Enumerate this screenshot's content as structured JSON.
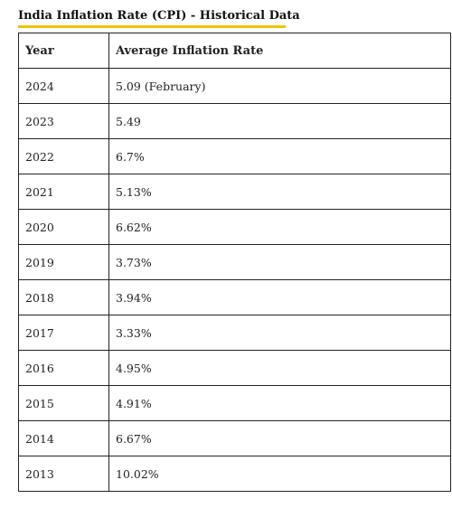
{
  "heading": "India Inflation Rate (CPI) - Historical Data",
  "colors": {
    "underline": "#f2c200",
    "border": "#222222",
    "text": "#222222"
  },
  "table": {
    "headers": [
      "Year",
      "Average Inflation Rate"
    ],
    "rows": [
      {
        "year": "2024",
        "rate": "5.09 (February)"
      },
      {
        "year": "2023",
        "rate": "5.49"
      },
      {
        "year": "2022",
        "rate": "6.7%"
      },
      {
        "year": "2021",
        "rate": "5.13%"
      },
      {
        "year": "2020",
        "rate": "6.62%"
      },
      {
        "year": "2019",
        "rate": "3.73%"
      },
      {
        "year": "2018",
        "rate": "3.94%"
      },
      {
        "year": "2017",
        "rate": "3.33%"
      },
      {
        "year": "2016",
        "rate": "4.95%"
      },
      {
        "year": "2015",
        "rate": "4.91%"
      },
      {
        "year": "2014",
        "rate": "6.67%"
      },
      {
        "year": "2013",
        "rate": "10.02%"
      }
    ]
  }
}
